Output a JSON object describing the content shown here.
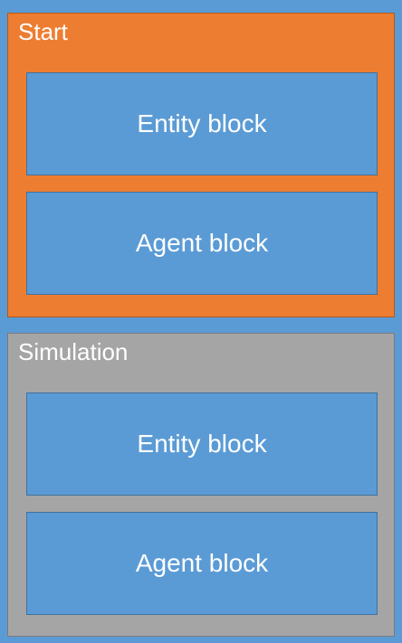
{
  "diagram": {
    "phases": [
      {
        "title": "Start",
        "blocks": [
          "Entity block",
          "Agent block"
        ],
        "color": "#ed7d31"
      },
      {
        "title": "Simulation",
        "blocks": [
          "Entity block",
          "Agent block"
        ],
        "color": "#a5a5a5"
      }
    ],
    "background_color": "#5b9bd5",
    "block_color": "#5b9bd5"
  }
}
